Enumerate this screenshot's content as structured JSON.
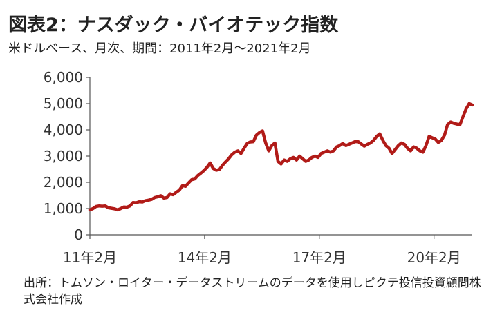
{
  "title": "図表2：ナスダック・バイオテック指数",
  "subtitle": "米ドルベース、月次、期間：2011年2月～2021年2月",
  "source": "出所：トムソン・ロイター・データストリームのデータを使用しピクテ投信投資顧問株式会社作成",
  "colors": {
    "line": "#b11b18",
    "axis": "#555555",
    "text": "#333333"
  },
  "chart_data": {
    "type": "line",
    "title": "図表2：ナスダック・バイオテック指数",
    "subtitle": "米ドルベース、月次、期間：2011年2月～2021年2月",
    "xlabel": "",
    "ylabel": "",
    "ylim": [
      0,
      6000
    ],
    "yticks": [
      0,
      1000,
      2000,
      3000,
      4000,
      5000,
      6000
    ],
    "ytick_labels": [
      "0",
      "1,000",
      "2,000",
      "3,000",
      "4,000",
      "5,000",
      "6,000"
    ],
    "xtick_labels": [
      "11年2月",
      "14年2月",
      "17年2月",
      "20年2月"
    ],
    "xtick_months": [
      "2011-02",
      "2014-02",
      "2017-02",
      "2020-02"
    ],
    "grid": false,
    "legend": "none",
    "x_start": "2011-02",
    "x_end": "2021-02",
    "series": [
      {
        "values": [
          950,
          1000,
          1080,
          1100,
          1090,
          1100,
          1030,
          1010,
          990,
          950,
          1000,
          1060,
          1050,
          1100,
          1230,
          1220,
          1260,
          1250,
          1300,
          1320,
          1350,
          1420,
          1450,
          1490,
          1400,
          1420,
          1560,
          1530,
          1620,
          1700,
          1870,
          1850,
          1980,
          2100,
          2130,
          2260,
          2350,
          2450,
          2580,
          2740,
          2530,
          2460,
          2490,
          2650,
          2780,
          2900,
          3050,
          3150,
          3200,
          3100,
          3300,
          3480,
          3540,
          3550,
          3800,
          3900,
          3960,
          3500,
          3200,
          3400,
          3500,
          2800,
          2700,
          2850,
          2800,
          2900,
          2950,
          2850,
          3000,
          2900,
          2800,
          2850,
          2950,
          3000,
          2950,
          3100,
          3150,
          3200,
          3150,
          3200,
          3350,
          3400,
          3480,
          3400,
          3450,
          3500,
          3550,
          3550,
          3460,
          3380,
          3450,
          3500,
          3600,
          3750,
          3850,
          3600,
          3400,
          3300,
          3100,
          3250,
          3400,
          3500,
          3450,
          3300,
          3200,
          3350,
          3300,
          3200,
          3150,
          3400,
          3750,
          3700,
          3650,
          3520,
          3600,
          3800,
          4200,
          4300,
          4250,
          4220,
          4200,
          4500,
          4800,
          5000,
          4950
        ]
      }
    ]
  }
}
